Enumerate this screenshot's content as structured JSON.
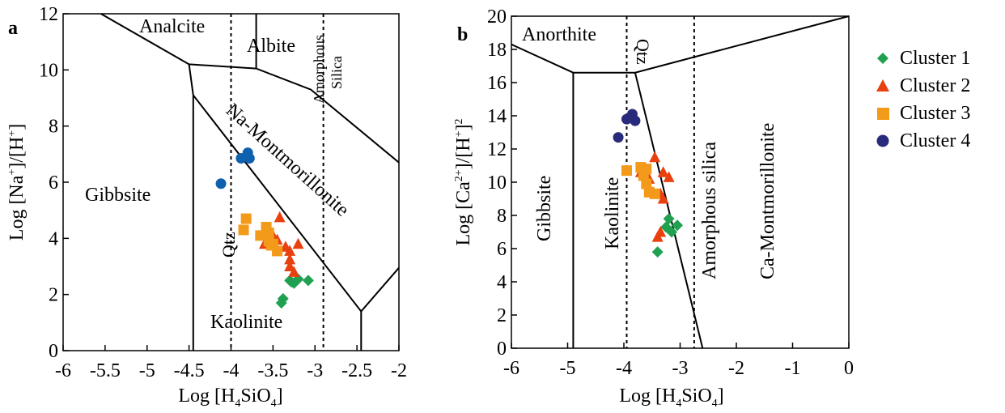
{
  "colors": {
    "cluster1": "#1fa151",
    "cluster2": "#e8410f",
    "cluster3": "#f39a1b",
    "cluster4": "#282a7b",
    "cluster4_panel_a": "#0f61ad",
    "lines": "#000000"
  },
  "legend": {
    "items": [
      {
        "label": "Cluster 1",
        "marker": "diamond",
        "color": "#1fa151"
      },
      {
        "label": "Cluster 2",
        "marker": "triangle",
        "color": "#e8410f"
      },
      {
        "label": "Cluster 3",
        "marker": "square",
        "color": "#f39a1b"
      },
      {
        "label": "Cluster 4",
        "marker": "circle",
        "color": "#282a7b"
      }
    ]
  },
  "chart_data": [
    {
      "panel": "a",
      "type": "scatter",
      "xlabel_parts": [
        "Log [H",
        "4",
        "SiO",
        "4",
        "]"
      ],
      "ylabel_parts": [
        "Log [Na",
        "+",
        "]/[H",
        "+",
        "]"
      ],
      "xlim": [
        -6,
        -2
      ],
      "ylim": [
        0,
        12
      ],
      "xticks": [
        -6,
        -5.5,
        -5,
        -4.5,
        -4,
        -3.5,
        -3,
        -2.5,
        -2
      ],
      "xtick_labels": [
        "-6",
        "-5.5",
        "-5",
        "-4.5",
        "-4",
        "-3.5",
        "-3",
        "-2.5",
        "-2"
      ],
      "yticks": [
        0,
        2,
        4,
        6,
        8,
        10,
        12
      ],
      "ytick_labels": [
        "0",
        "2",
        "4",
        "6",
        "8",
        "10",
        "12"
      ],
      "boundaries": [
        [
          [
            -5.55,
            12
          ],
          [
            -4.5,
            10.2
          ],
          [
            -3.7,
            10.05
          ],
          [
            -3.05,
            9.3
          ],
          [
            -2,
            6.7
          ]
        ],
        [
          [
            -3.7,
            12
          ],
          [
            -3.7,
            10.05
          ]
        ],
        [
          [
            -4.5,
            10.2
          ],
          [
            -4.45,
            9.1
          ],
          [
            -4.45,
            0
          ]
        ],
        [
          [
            -4.45,
            9.1
          ],
          [
            -2.45,
            1.4
          ],
          [
            -2.45,
            0
          ]
        ],
        [
          [
            -2.45,
            1.4
          ],
          [
            -2,
            2.95
          ]
        ]
      ],
      "reference_lines": [
        {
          "label": "Qtz",
          "x": -4.0
        },
        {
          "label": "Amorphous Silica",
          "x": -2.9
        }
      ],
      "field_labels": [
        "Analcite",
        "Albite",
        "Gibbsite",
        "Kaolinite",
        "Na-Montmorillonite",
        "Qtz",
        "Amorphous",
        "Silica"
      ],
      "series": [
        {
          "name": "Cluster 1",
          "marker": "diamond",
          "color": "#1fa151",
          "points": [
            [
              -3.4,
              1.7
            ],
            [
              -3.38,
              1.85
            ],
            [
              -3.3,
              2.5
            ],
            [
              -3.25,
              2.4
            ],
            [
              -3.2,
              2.55
            ],
            [
              -3.08,
              2.5
            ],
            [
              -3.28,
              2.45
            ]
          ]
        },
        {
          "name": "Cluster 2",
          "marker": "triangle",
          "color": "#e8410f",
          "points": [
            [
              -3.42,
              4.75
            ],
            [
              -3.6,
              3.8
            ],
            [
              -3.5,
              4.1
            ],
            [
              -3.45,
              3.95
            ],
            [
              -3.35,
              3.7
            ],
            [
              -3.3,
              3.55
            ],
            [
              -3.2,
              3.8
            ],
            [
              -3.3,
              3.25
            ],
            [
              -3.3,
              3.0
            ],
            [
              -3.25,
              2.8
            ]
          ]
        },
        {
          "name": "Cluster 3",
          "marker": "square",
          "color": "#f39a1b",
          "points": [
            [
              -3.82,
              4.7
            ],
            [
              -3.85,
              4.3
            ],
            [
              -3.65,
              4.1
            ],
            [
              -3.58,
              4.4
            ],
            [
              -3.55,
              4.2
            ],
            [
              -3.55,
              3.9
            ],
            [
              -3.5,
              3.8
            ],
            [
              -3.45,
              3.55
            ],
            [
              -3.52,
              3.75
            ]
          ]
        },
        {
          "name": "Cluster 4",
          "marker": "circle",
          "color": "#0f61ad",
          "points": [
            [
              -4.12,
              5.95
            ],
            [
              -3.88,
              6.85
            ],
            [
              -3.8,
              7.05
            ],
            [
              -3.78,
              6.85
            ]
          ]
        }
      ]
    },
    {
      "panel": "b",
      "type": "scatter",
      "xlabel_parts": [
        "Log [H",
        "4",
        "SiO",
        "4",
        "]"
      ],
      "ylabel_parts": [
        "Log [Ca",
        "2+",
        "]/[H",
        "+",
        "]",
        "2"
      ],
      "xlim": [
        -6,
        0
      ],
      "ylim": [
        0,
        20
      ],
      "xticks": [
        -6,
        -5,
        -4,
        -3,
        -2,
        -1,
        0
      ],
      "xtick_labels": [
        "-6",
        "-5",
        "-4",
        "-3",
        "-2",
        "-1",
        "0"
      ],
      "yticks": [
        0,
        2,
        4,
        6,
        8,
        10,
        12,
        14,
        16,
        18,
        20
      ],
      "ytick_labels": [
        "0",
        "2",
        "4",
        "6",
        "8",
        "10",
        "12",
        "14",
        "16",
        "18",
        "20"
      ],
      "boundaries": [
        [
          [
            -6,
            18.3
          ],
          [
            -4.9,
            16.6
          ],
          [
            -3.8,
            16.6
          ],
          [
            0,
            20
          ]
        ],
        [
          [
            -4.9,
            16.6
          ],
          [
            -4.9,
            0
          ]
        ],
        [
          [
            -3.8,
            16.6
          ],
          [
            -2.6,
            0
          ]
        ]
      ],
      "reference_lines": [
        {
          "label": "Qtz",
          "x": -3.95
        },
        {
          "label": "Amorphous silica",
          "x": -2.75
        }
      ],
      "field_labels": [
        "Anorthite",
        "Gibbsite",
        "Kaolinite",
        "Qtz",
        "Amorphous silica",
        "Ca-Montmorillonite"
      ],
      "series": [
        {
          "name": "Cluster 1",
          "marker": "diamond",
          "color": "#1fa151",
          "points": [
            [
              -3.2,
              7.8
            ],
            [
              -3.05,
              7.4
            ],
            [
              -3.25,
              7.3
            ],
            [
              -3.15,
              7.0
            ],
            [
              -3.4,
              5.8
            ]
          ]
        },
        {
          "name": "Cluster 2",
          "marker": "triangle",
          "color": "#e8410f",
          "points": [
            [
              -3.45,
              11.5
            ],
            [
              -3.7,
              10.6
            ],
            [
              -3.55,
              10.2
            ],
            [
              -3.3,
              10.6
            ],
            [
              -3.2,
              10.3
            ],
            [
              -3.35,
              9.3
            ],
            [
              -3.3,
              9.0
            ],
            [
              -3.35,
              7.0
            ],
            [
              -3.4,
              6.7
            ]
          ]
        },
        {
          "name": "Cluster 3",
          "marker": "square",
          "color": "#f39a1b",
          "points": [
            [
              -3.95,
              10.7
            ],
            [
              -3.7,
              10.9
            ],
            [
              -3.6,
              10.8
            ],
            [
              -3.65,
              10.4
            ],
            [
              -3.6,
              9.9
            ],
            [
              -3.55,
              9.4
            ],
            [
              -3.45,
              9.3
            ]
          ]
        },
        {
          "name": "Cluster 4",
          "marker": "circle",
          "color": "#282a7b",
          "points": [
            [
              -4.1,
              12.7
            ],
            [
              -3.95,
              13.8
            ],
            [
              -3.85,
              14.1
            ],
            [
              -3.8,
              13.7
            ]
          ]
        }
      ]
    }
  ]
}
